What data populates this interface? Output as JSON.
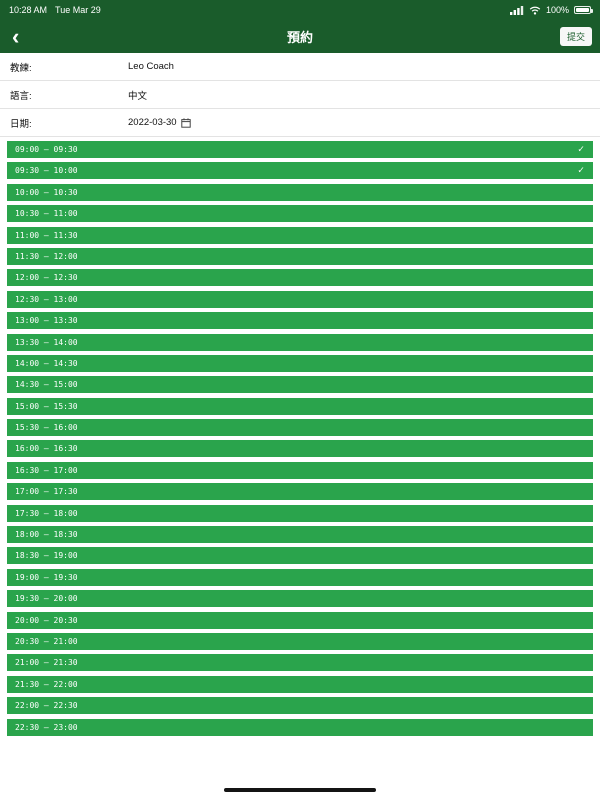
{
  "colors": {
    "header_green": "#1a5c2b",
    "slot_green": "#2aa44c"
  },
  "status_bar": {
    "time": "10:28 AM",
    "date": "Tue Mar 29",
    "battery_percent": "100%"
  },
  "nav": {
    "back_icon": "‹",
    "title": "預約",
    "submit_label": "提交"
  },
  "form": {
    "rows": [
      {
        "label": "教練:",
        "value": "Leo Coach"
      },
      {
        "label": "語言:",
        "value": "中文"
      },
      {
        "label": "日期:",
        "value": "2022-03-30"
      }
    ]
  },
  "icons": {
    "checkmark": "✓"
  },
  "slots": [
    {
      "label": "09:00 – 09:30",
      "selected": true
    },
    {
      "label": "09:30 – 10:00",
      "selected": true
    },
    {
      "label": "10:00 – 10:30",
      "selected": false
    },
    {
      "label": "10:30 – 11:00",
      "selected": false
    },
    {
      "label": "11:00 – 11:30",
      "selected": false
    },
    {
      "label": "11:30 – 12:00",
      "selected": false
    },
    {
      "label": "12:00 – 12:30",
      "selected": false
    },
    {
      "label": "12:30 – 13:00",
      "selected": false
    },
    {
      "label": "13:00 – 13:30",
      "selected": false
    },
    {
      "label": "13:30 – 14:00",
      "selected": false
    },
    {
      "label": "14:00 – 14:30",
      "selected": false
    },
    {
      "label": "14:30 – 15:00",
      "selected": false
    },
    {
      "label": "15:00 – 15:30",
      "selected": false
    },
    {
      "label": "15:30 – 16:00",
      "selected": false
    },
    {
      "label": "16:00 – 16:30",
      "selected": false
    },
    {
      "label": "16:30 – 17:00",
      "selected": false
    },
    {
      "label": "17:00 – 17:30",
      "selected": false
    },
    {
      "label": "17:30 – 18:00",
      "selected": false
    },
    {
      "label": "18:00 – 18:30",
      "selected": false
    },
    {
      "label": "18:30 – 19:00",
      "selected": false
    },
    {
      "label": "19:00 – 19:30",
      "selected": false
    },
    {
      "label": "19:30 – 20:00",
      "selected": false
    },
    {
      "label": "20:00 – 20:30",
      "selected": false
    },
    {
      "label": "20:30 – 21:00",
      "selected": false
    },
    {
      "label": "21:00 – 21:30",
      "selected": false
    },
    {
      "label": "21:30 – 22:00",
      "selected": false
    },
    {
      "label": "22:00 – 22:30",
      "selected": false
    },
    {
      "label": "22:30 – 23:00",
      "selected": false
    }
  ]
}
